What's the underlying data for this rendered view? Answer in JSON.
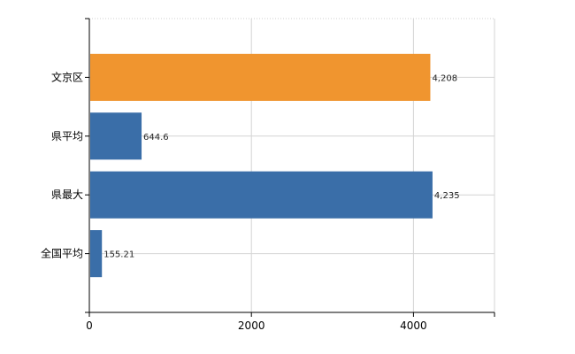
{
  "chart_data": {
    "type": "bar",
    "orientation": "horizontal",
    "title": "",
    "xlabel": "",
    "ylabel": "",
    "categories": [
      "文京区",
      "県平均",
      "県最大",
      "全国平均"
    ],
    "values": [
      4208,
      644.6,
      4235,
      155.21
    ],
    "value_labels": [
      "4,208",
      "644.6",
      "4,235",
      "155.21"
    ],
    "bar_colors": [
      "#f0952f",
      "#3a6ea8",
      "#3a6ea8",
      "#3a6ea8"
    ],
    "xlim": [
      0,
      5000
    ],
    "x_ticks": [
      0,
      2000,
      4000
    ],
    "x_tick_labels": [
      "0",
      "2000",
      "4000"
    ],
    "grid": true,
    "legend": "none"
  }
}
